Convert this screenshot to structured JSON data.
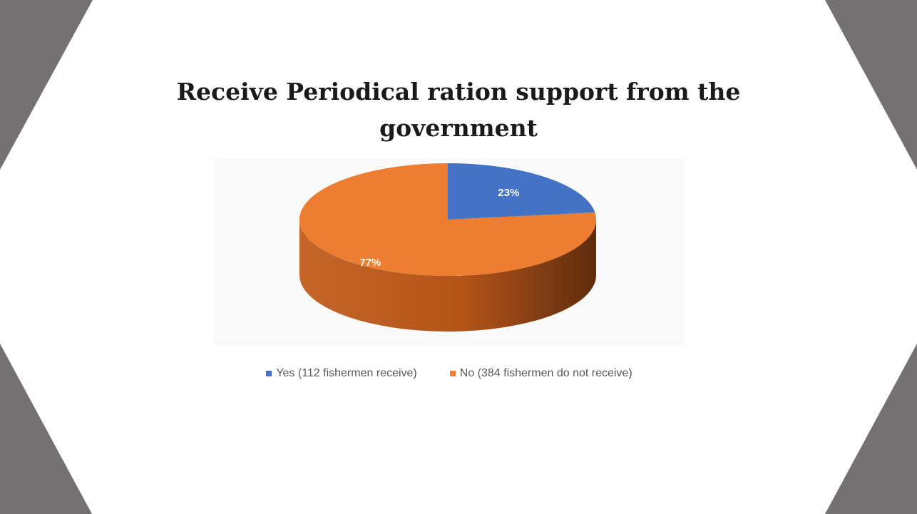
{
  "chart_data": {
    "type": "pie",
    "title": [
      "Receive Periodical ration support from the",
      "government"
    ],
    "slices": [
      {
        "name": "Yes (112 fishermen receive)",
        "value": 23,
        "label": "23%",
        "color": "#4472c4"
      },
      {
        "name": "No (384 fishermen do not receive)",
        "value": 77,
        "label": "77%",
        "color": "#ed7d31"
      }
    ],
    "legend_position": "bottom",
    "style": "3d"
  },
  "theme": {
    "frame_color": "#767171",
    "pie_side_color": "#b85a1e",
    "label_color": "#ffffff"
  }
}
